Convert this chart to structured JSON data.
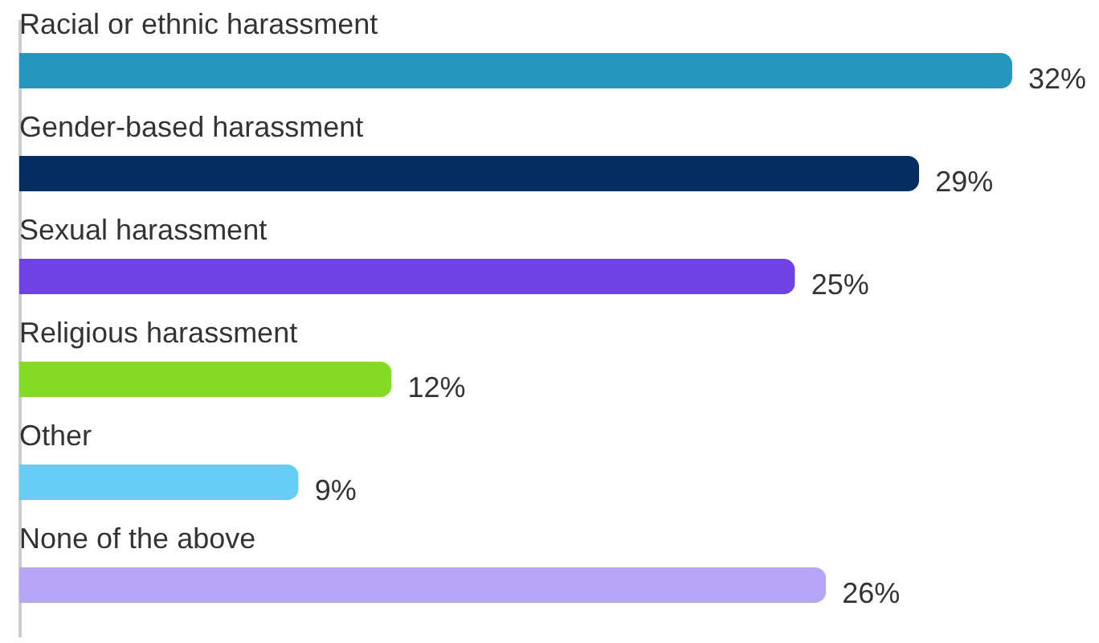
{
  "chart_data": {
    "type": "bar",
    "orientation": "horizontal",
    "categories": [
      "Racial or ethnic harassment",
      "Gender-based harassment",
      "Sexual harassment",
      "Religious harassment",
      "Other",
      "None of the above"
    ],
    "values": [
      32,
      29,
      25,
      12,
      9,
      26
    ],
    "colors": [
      "#2596be",
      "#062d62",
      "#6f42e3",
      "#84db25",
      "#66cef5",
      "#b7a6f5"
    ],
    "value_labels": [
      "32%",
      "29%",
      "25%",
      "12%",
      "9%",
      "26%"
    ]
  }
}
